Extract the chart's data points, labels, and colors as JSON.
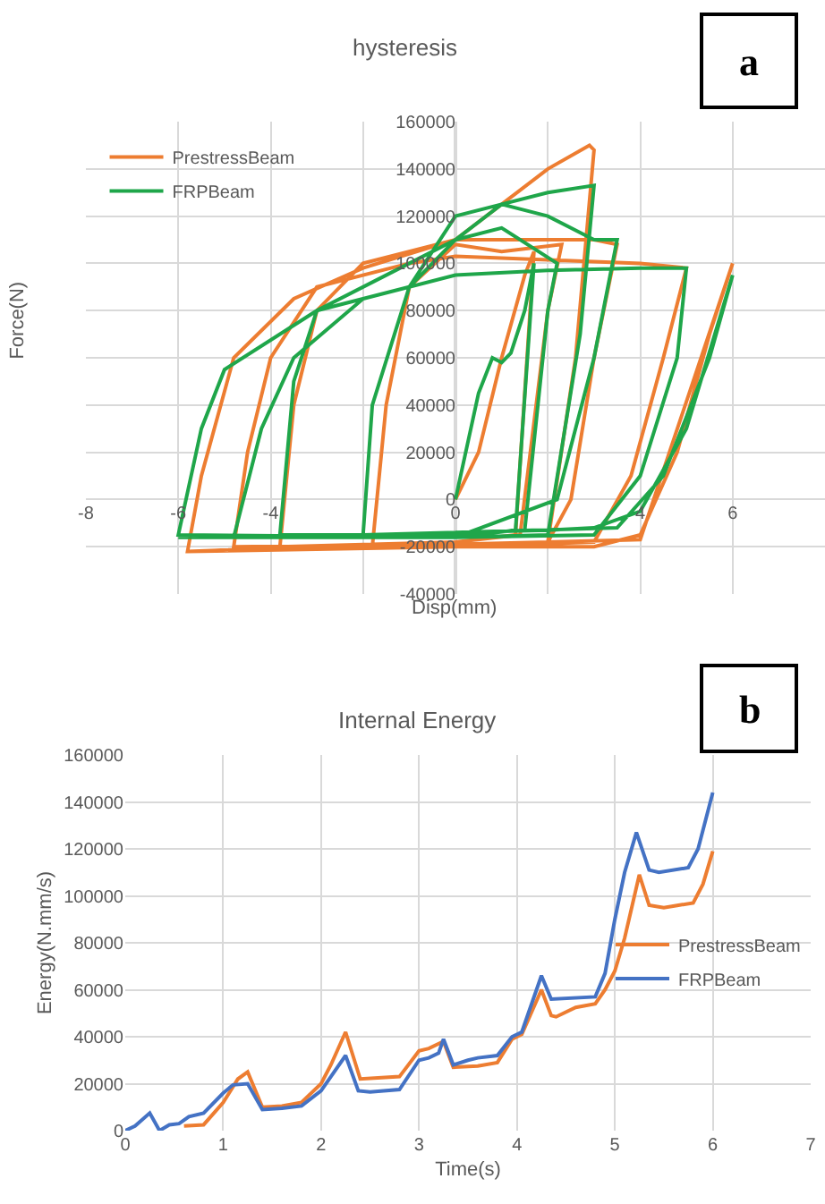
{
  "chart_data": [
    {
      "type": "line",
      "title": "hysteresis",
      "xlabel": "Disp(mm)",
      "ylabel": "Force(N)",
      "annotations": [
        "a"
      ],
      "xlim": [
        -8,
        8
      ],
      "xticks": [
        -8,
        {
          "value": -2,
          "label": null
        },
        -6,
        -4,
        0,
        {
          "value": 2,
          "label": null
        },
        4,
        6
      ],
      "ylim": [
        -40000,
        160000
      ],
      "yticks": [
        -40000,
        -20000,
        0,
        20000,
        40000,
        60000,
        80000,
        100000,
        120000,
        140000,
        160000
      ],
      "grid": true,
      "legend": "top left",
      "series": [
        {
          "name": "PrestressBeam",
          "color": "#ed7d31",
          "x": [
            0,
            0.5,
            1.0,
            1.5,
            1.7,
            1.3,
            0,
            -1.8,
            -1.5,
            -1,
            0,
            1,
            2.3,
            2.0,
            1.4,
            0,
            -3.8,
            -3.5,
            -3,
            -2,
            0,
            3,
            3.5,
            3,
            2.5,
            2,
            0,
            -4.8,
            -4.5,
            -4,
            -3,
            -1,
            0,
            4,
            5,
            4.5,
            3.8,
            3,
            0,
            -5.8,
            -5.5,
            -4.8,
            -3.5,
            -2,
            0,
            1,
            2,
            2.9,
            3.0,
            2.6,
            2.0,
            0,
            -5.8,
            -4.5,
            -2,
            0,
            2,
            4,
            6,
            5.5,
            4.8,
            4,
            3,
            0
          ],
          "values": [
            0,
            20000,
            60000,
            95000,
            105000,
            -15000,
            -18000,
            -20000,
            40000,
            90000,
            108000,
            105000,
            108000,
            80000,
            -15000,
            -18000,
            -20000,
            40000,
            80000,
            100000,
            110000,
            110000,
            108000,
            60000,
            0,
            -18000,
            -19000,
            -20000,
            20000,
            60000,
            90000,
            100000,
            103000,
            100000,
            98000,
            60000,
            10000,
            -18000,
            -20000,
            -22000,
            10000,
            60000,
            85000,
            98000,
            110000,
            125000,
            140000,
            150000,
            148000,
            60000,
            -18000,
            -20000,
            -22000,
            -21000,
            -20000,
            -19000,
            -18000,
            -17000,
            100000,
            70000,
            20000,
            -15000,
            -20000,
            -20000
          ]
        },
        {
          "name": "FRPBeam",
          "color": "#1fa64a",
          "x": [
            0,
            0.5,
            0.8,
            1.0,
            1.2,
            1.5,
            1.7,
            1.3,
            0,
            -2,
            -1.8,
            -1,
            0,
            1.0,
            2.2,
            2.0,
            1.5,
            0,
            -3.8,
            -3.5,
            -3,
            -1.5,
            0,
            1,
            2,
            3,
            3.5,
            3.0,
            2.2,
            0,
            -4.8,
            -4.2,
            -3.5,
            -2,
            0,
            2,
            4,
            5,
            4.8,
            4.0,
            3,
            0,
            -6,
            -5.5,
            -5,
            -3,
            -1,
            0,
            1,
            2,
            3.0,
            2.7,
            2.0,
            0,
            -6,
            -4,
            -2,
            0,
            2,
            3,
            4,
            5,
            6,
            5.5,
            4.5,
            3.5,
            0
          ],
          "values": [
            0,
            45000,
            60000,
            58000,
            62000,
            80000,
            100000,
            -13000,
            -16000,
            -15000,
            40000,
            90000,
            110000,
            115000,
            100000,
            80000,
            -13000,
            -15000,
            -15000,
            50000,
            80000,
            95000,
            110000,
            125000,
            120000,
            110000,
            110000,
            60000,
            0,
            -16000,
            -16000,
            30000,
            60000,
            85000,
            95000,
            97000,
            98000,
            98000,
            60000,
            10000,
            -15000,
            -16000,
            -15000,
            30000,
            55000,
            80000,
            90000,
            120000,
            125000,
            130000,
            133000,
            70000,
            -15000,
            -16000,
            -16000,
            -16000,
            -15000,
            -14000,
            -13000,
            -12000,
            -5000,
            30000,
            95000,
            60000,
            10000,
            -12000,
            -14000
          ]
        }
      ]
    },
    {
      "type": "line",
      "title": "Internal Energy",
      "xlabel": "Time(s)",
      "ylabel": "Energy(N.mm/s)",
      "annotations": [
        "b"
      ],
      "xlim": [
        0,
        7
      ],
      "xticks": [
        0,
        1,
        2,
        3,
        4,
        5,
        6,
        7
      ],
      "ylim": [
        0,
        160000
      ],
      "yticks": [
        0,
        20000,
        40000,
        60000,
        80000,
        100000,
        120000,
        140000,
        160000
      ],
      "grid": true,
      "legend": "right",
      "series": [
        {
          "name": "PrestressBeam",
          "color": "#ed7d31",
          "x": [
            0.6,
            0.8,
            1.0,
            1.15,
            1.25,
            1.4,
            1.6,
            1.8,
            2.0,
            2.1,
            2.25,
            2.4,
            2.8,
            3.0,
            3.1,
            3.25,
            3.35,
            3.6,
            3.8,
            3.95,
            4.05,
            4.25,
            4.35,
            4.4,
            4.6,
            4.8,
            4.9,
            5.0,
            5.1,
            5.25,
            5.35,
            5.5,
            5.65,
            5.8,
            5.9,
            6.0
          ],
          "values": [
            2000,
            2500,
            12000,
            22000,
            25000,
            10000,
            10500,
            12000,
            20000,
            28000,
            42000,
            22000,
            23000,
            34000,
            35000,
            38000,
            27000,
            27500,
            29000,
            39000,
            41000,
            60000,
            49000,
            48500,
            52500,
            54000,
            60000,
            68000,
            82000,
            109000,
            96000,
            95000,
            96000,
            97000,
            105000,
            119000
          ]
        },
        {
          "name": "FRPBeam",
          "color": "#4472c4",
          "x": [
            0,
            0.1,
            0.25,
            0.35,
            0.45,
            0.55,
            0.65,
            0.8,
            1.0,
            1.1,
            1.25,
            1.4,
            1.6,
            1.8,
            2.0,
            2.1,
            2.25,
            2.38,
            2.5,
            2.8,
            3.0,
            3.1,
            3.2,
            3.25,
            3.35,
            3.5,
            3.6,
            3.8,
            3.95,
            4.05,
            4.25,
            4.35,
            4.8,
            4.9,
            5.0,
            5.1,
            5.22,
            5.35,
            5.45,
            5.75,
            5.85,
            6.0
          ],
          "values": [
            0,
            2000,
            7500,
            0,
            2500,
            3000,
            6000,
            7500,
            16000,
            19500,
            20000,
            9000,
            9500,
            10500,
            17000,
            23000,
            32000,
            17000,
            16500,
            17500,
            30000,
            31000,
            33000,
            39000,
            28000,
            30000,
            31000,
            32000,
            40000,
            42000,
            66000,
            56000,
            57000,
            67000,
            90000,
            110000,
            127000,
            111000,
            110000,
            112000,
            120000,
            144000
          ]
        }
      ]
    }
  ]
}
